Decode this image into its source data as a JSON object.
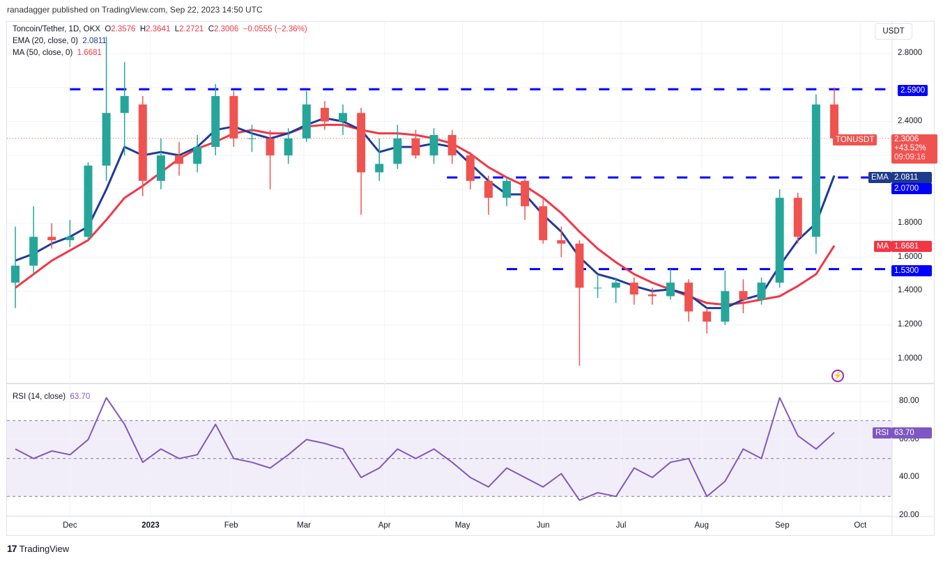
{
  "header": {
    "published": "ranadagger published on TradingView.com, Sep 22, 2023 14:50 UTC"
  },
  "legend": {
    "symbol": "Toncoin/Tether, 1D, OKX",
    "o_label": "O",
    "o": "2.3576",
    "h_label": "H",
    "h": "2.3641",
    "l_label": "L",
    "l": "2.2721",
    "c_label": "C",
    "c": "2.3006",
    "change": "−0.0555 (−2.36%)",
    "ema_label": "EMA (20, close, 0)",
    "ema_value": "2.0811",
    "ma_label": "MA (50, close, 0)",
    "ma_value": "1.6681",
    "rsi_label": "RSI (14, close)",
    "rsi_value": "63.70"
  },
  "axis": {
    "currency": "USDT",
    "price_ticks": [
      "2.8000",
      "2.4000",
      "1.8000",
      "1.6000",
      "1.4000",
      "1.2000",
      "1.0000"
    ],
    "rsi_ticks": [
      "80.00",
      "60.00",
      "40.00",
      "20.00"
    ],
    "time_ticks": [
      "Dec",
      "2023",
      "Feb",
      "Mar",
      "Apr",
      "May",
      "Jun",
      "Jul",
      "Aug",
      "Sep",
      "Oct"
    ]
  },
  "tags": {
    "symbol": "TONUSDT",
    "last_price": "2.3006",
    "last_change": "+43.52%",
    "countdown": "09:09:16",
    "ema_tag": "EMA",
    "ema_price": "2.0811",
    "ma_tag": "MA",
    "ma_price": "1.6681",
    "rsi_tag": "RSI",
    "rsi_price": "63.70",
    "level_1": "2.5900",
    "level_2": "2.0700",
    "level_3": "1.5300"
  },
  "footer": {
    "brand": "TradingView"
  },
  "colors": {
    "up": "#26a69a",
    "down": "#ef5350",
    "ema": "#1e3a9a",
    "ma": "#f23645",
    "rsi": "#7e57c2",
    "level": "#0000ff"
  },
  "chart_data": {
    "type": "candlestick",
    "note_resolution": "weekly approximation of daily candles",
    "ylim": [
      0.9,
      2.95
    ],
    "grid": true,
    "weeks": [
      "2022-11-07",
      "2022-11-14",
      "2022-11-21",
      "2022-11-28",
      "2022-12-05",
      "2022-12-12",
      "2022-12-19",
      "2022-12-26",
      "2023-01-02",
      "2023-01-09",
      "2023-01-16",
      "2023-01-23",
      "2023-01-30",
      "2023-02-06",
      "2023-02-13",
      "2023-02-20",
      "2023-02-27",
      "2023-03-06",
      "2023-03-13",
      "2023-03-20",
      "2023-03-27",
      "2023-04-03",
      "2023-04-10",
      "2023-04-17",
      "2023-04-24",
      "2023-05-01",
      "2023-05-08",
      "2023-05-15",
      "2023-05-22",
      "2023-05-29",
      "2023-06-05",
      "2023-06-12",
      "2023-06-19",
      "2023-06-26",
      "2023-07-03",
      "2023-07-10",
      "2023-07-17",
      "2023-07-24",
      "2023-07-31",
      "2023-08-07",
      "2023-08-14",
      "2023-08-21",
      "2023-08-28",
      "2023-09-04",
      "2023-09-11",
      "2023-09-18"
    ],
    "ohlc": [
      [
        1.45,
        1.78,
        1.3,
        1.55
      ],
      [
        1.55,
        1.9,
        1.5,
        1.72
      ],
      [
        1.72,
        1.8,
        1.65,
        1.7
      ],
      [
        1.7,
        1.82,
        1.66,
        1.72
      ],
      [
        1.72,
        2.16,
        1.7,
        2.14
      ],
      [
        2.14,
        2.9,
        2.05,
        2.45
      ],
      [
        2.45,
        2.75,
        2.2,
        2.55
      ],
      [
        2.5,
        2.55,
        1.96,
        2.05
      ],
      [
        2.05,
        2.3,
        2.0,
        2.2
      ],
      [
        2.2,
        2.28,
        2.08,
        2.15
      ],
      [
        2.15,
        2.32,
        2.1,
        2.25
      ],
      [
        2.25,
        2.62,
        2.2,
        2.55
      ],
      [
        2.55,
        2.58,
        2.25,
        2.3
      ],
      [
        2.3,
        2.38,
        2.22,
        2.3
      ],
      [
        2.3,
        2.35,
        2.0,
        2.2
      ],
      [
        2.2,
        2.36,
        2.15,
        2.3
      ],
      [
        2.3,
        2.58,
        2.28,
        2.5
      ],
      [
        2.48,
        2.52,
        2.35,
        2.4
      ],
      [
        2.4,
        2.5,
        2.32,
        2.45
      ],
      [
        2.45,
        2.48,
        1.85,
        2.1
      ],
      [
        2.1,
        2.3,
        2.05,
        2.15
      ],
      [
        2.15,
        2.38,
        2.12,
        2.3
      ],
      [
        2.3,
        2.35,
        2.18,
        2.2
      ],
      [
        2.2,
        2.36,
        2.15,
        2.32
      ],
      [
        2.32,
        2.35,
        2.15,
        2.2
      ],
      [
        2.2,
        2.22,
        2.0,
        2.05
      ],
      [
        2.05,
        2.08,
        1.85,
        1.95
      ],
      [
        1.95,
        2.07,
        1.9,
        2.05
      ],
      [
        2.05,
        2.06,
        1.82,
        1.9
      ],
      [
        1.9,
        1.95,
        1.68,
        1.7
      ],
      [
        1.7,
        1.78,
        1.6,
        1.68
      ],
      [
        1.68,
        1.7,
        0.96,
        1.42
      ],
      [
        1.42,
        1.5,
        1.36,
        1.42
      ],
      [
        1.42,
        1.48,
        1.33,
        1.45
      ],
      [
        1.45,
        1.48,
        1.32,
        1.38
      ],
      [
        1.38,
        1.42,
        1.32,
        1.37
      ],
      [
        1.37,
        1.53,
        1.35,
        1.45
      ],
      [
        1.45,
        1.47,
        1.22,
        1.28
      ],
      [
        1.28,
        1.3,
        1.15,
        1.22
      ],
      [
        1.22,
        1.52,
        1.2,
        1.4
      ],
      [
        1.4,
        1.47,
        1.27,
        1.35
      ],
      [
        1.35,
        1.48,
        1.32,
        1.45
      ],
      [
        1.45,
        2.0,
        1.42,
        1.95
      ],
      [
        1.95,
        1.98,
        1.68,
        1.72
      ],
      [
        1.72,
        2.56,
        1.62,
        2.5
      ],
      [
        2.5,
        2.6,
        2.27,
        2.3006
      ]
    ],
    "ema20": [
      1.58,
      1.62,
      1.68,
      1.72,
      1.78,
      2.0,
      2.25,
      2.2,
      2.22,
      2.2,
      2.25,
      2.35,
      2.37,
      2.33,
      2.3,
      2.33,
      2.38,
      2.42,
      2.4,
      2.35,
      2.22,
      2.25,
      2.25,
      2.27,
      2.25,
      2.15,
      2.05,
      1.97,
      1.97,
      1.85,
      1.75,
      1.6,
      1.5,
      1.47,
      1.43,
      1.4,
      1.41,
      1.38,
      1.3,
      1.3,
      1.35,
      1.38,
      1.55,
      1.7,
      1.8,
      2.0811
    ],
    "ma50": [
      1.42,
      1.5,
      1.58,
      1.64,
      1.7,
      1.82,
      1.95,
      2.02,
      2.1,
      2.18,
      2.24,
      2.28,
      2.33,
      2.35,
      2.33,
      2.33,
      2.37,
      2.38,
      2.38,
      2.35,
      2.33,
      2.33,
      2.32,
      2.3,
      2.27,
      2.21,
      2.13,
      2.07,
      2.02,
      1.95,
      1.86,
      1.75,
      1.65,
      1.57,
      1.5,
      1.45,
      1.41,
      1.37,
      1.33,
      1.32,
      1.33,
      1.35,
      1.37,
      1.43,
      1.5,
      1.6681
    ],
    "rsi14": [
      55,
      50,
      54,
      52,
      60,
      82,
      68,
      48,
      55,
      50,
      52,
      68,
      50,
      48,
      45,
      52,
      60,
      58,
      55,
      40,
      45,
      55,
      50,
      55,
      48,
      40,
      35,
      45,
      40,
      35,
      42,
      28,
      32,
      30,
      45,
      40,
      48,
      50,
      30,
      38,
      55,
      50,
      82,
      62,
      55,
      63.7
    ],
    "rsi_bands": [
      70,
      50,
      30
    ],
    "levels": [
      {
        "value": 2.59,
        "from": "2022-12-01"
      },
      {
        "value": 2.07,
        "from": "2023-04-25"
      },
      {
        "value": 1.53,
        "from": "2023-05-18"
      }
    ]
  }
}
